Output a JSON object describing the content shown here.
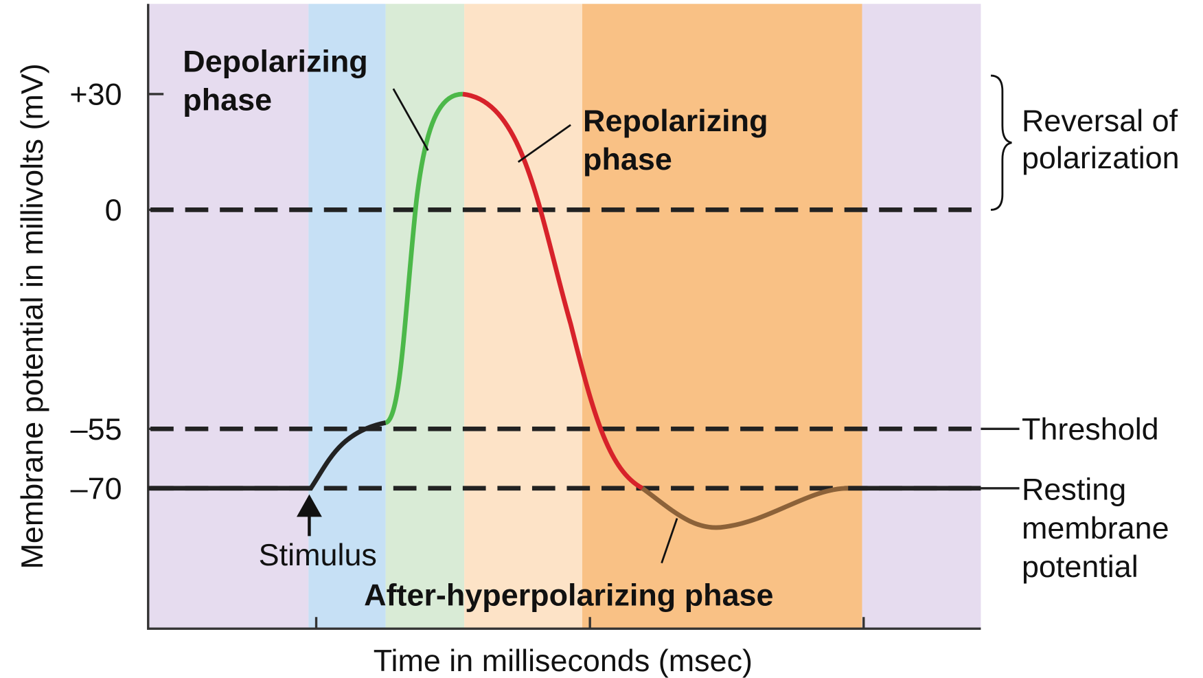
{
  "axes": {
    "y_label": "Membrane potential in millivolts (mV)",
    "x_label": "Time in milliseconds (msec)",
    "y_ticks": [
      "+30",
      "0",
      "–55",
      "–70"
    ]
  },
  "phases": {
    "depolarizing": [
      "Depolarizing",
      "phase"
    ],
    "repolarizing": [
      "Repolarizing",
      "phase"
    ],
    "after": "After-hyperpolarizing phase"
  },
  "annotations": {
    "stimulus": "Stimulus",
    "reversal": [
      "Reversal of",
      "polarization"
    ],
    "threshold": "Threshold",
    "resting": [
      "Resting",
      "membrane",
      "potential"
    ]
  }
}
